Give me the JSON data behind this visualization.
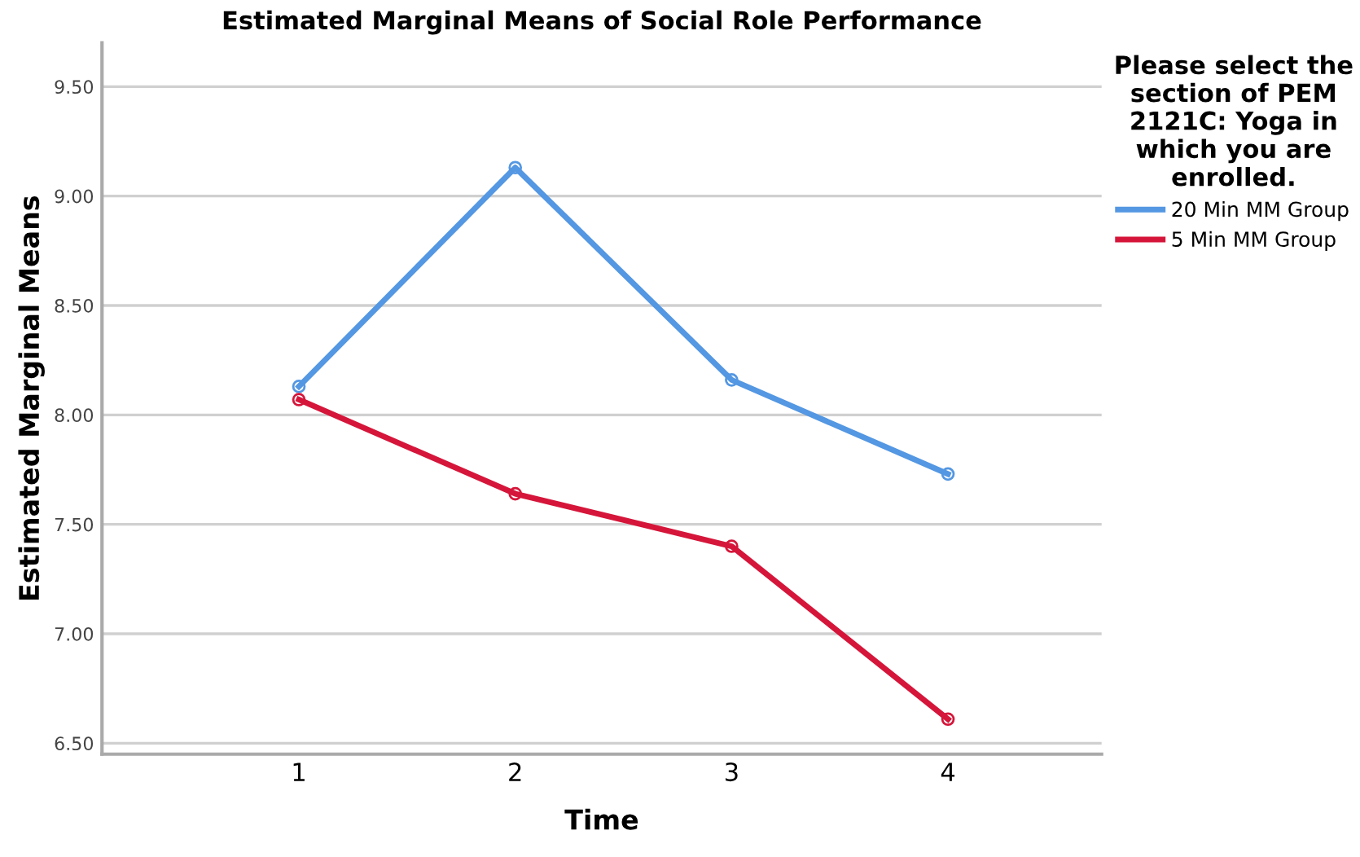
{
  "chart_data": {
    "type": "line",
    "title": "Estimated Marginal Means of Social Role Performance",
    "xlabel": "Time",
    "ylabel": "Estimated Marginal Means",
    "legend_title": "Please select the\nsection of PEM\n2121C: Yoga in\nwhich you are\nenrolled.",
    "categories": [
      "1",
      "2",
      "3",
      "4"
    ],
    "series": [
      {
        "name": "20 Min MM Group",
        "color": "#5497e2",
        "values": [
          8.13,
          9.13,
          8.16,
          7.73
        ]
      },
      {
        "name": "5 Min MM Group",
        "color": "#d5163a",
        "values": [
          8.07,
          7.64,
          7.4,
          6.61
        ]
      }
    ],
    "ylim": [
      6.45,
      9.7
    ],
    "yticks": [
      {
        "value": 6.5,
        "label": "6.50"
      },
      {
        "value": 7.0,
        "label": "7.00"
      },
      {
        "value": 7.5,
        "label": "7.50"
      },
      {
        "value": 8.0,
        "label": "8.00"
      },
      {
        "value": 8.5,
        "label": "8.50"
      },
      {
        "value": 9.0,
        "label": "9.00"
      },
      {
        "value": 9.5,
        "label": "9.50"
      }
    ],
    "grid": "y",
    "legend": "right",
    "marker": "circle",
    "line_style": "solid"
  }
}
